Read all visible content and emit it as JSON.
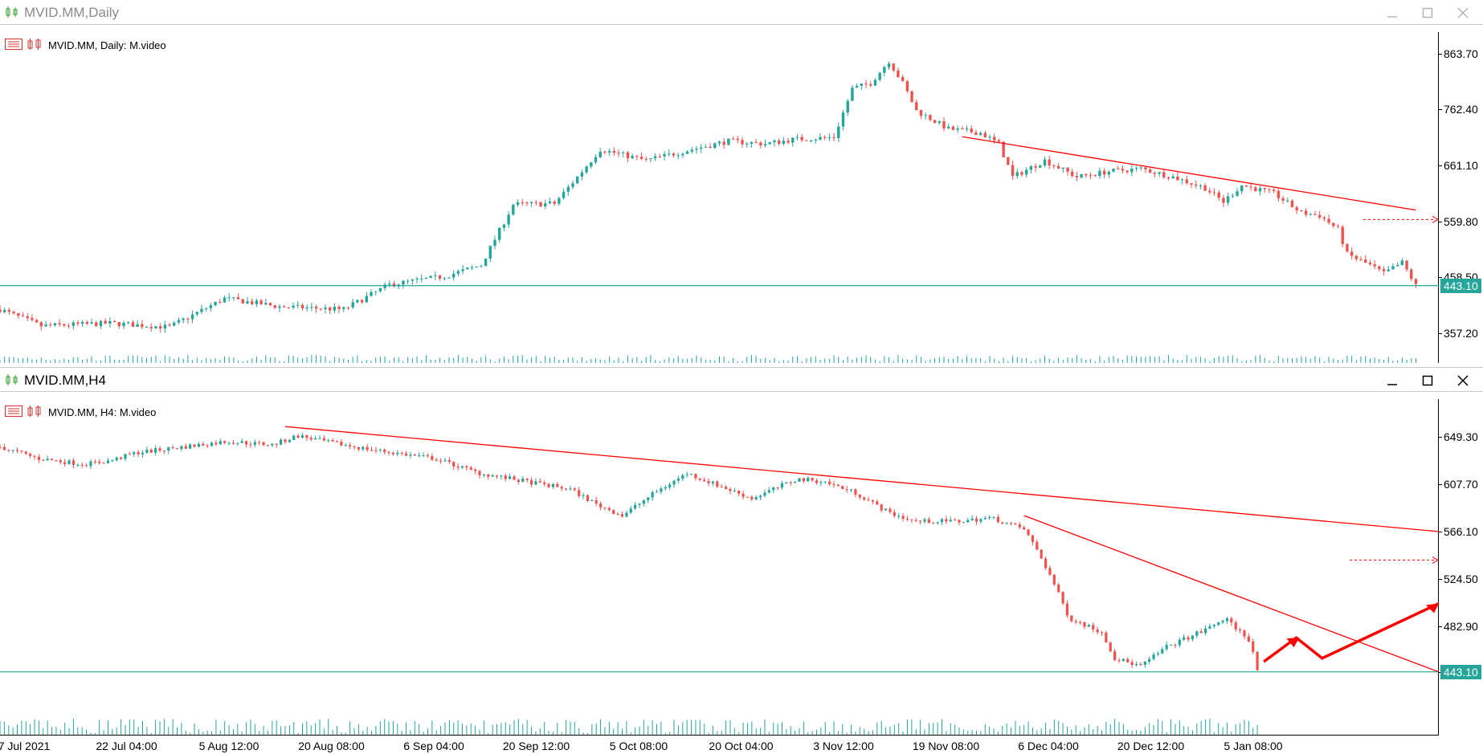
{
  "window_top": {
    "title": "MVID.MM,Daily",
    "legend": "MVID.MM, Daily:  M.video"
  },
  "window_bottom": {
    "title": "MVID.MM,H4",
    "legend": "MVID.MM, H4:  M.video"
  },
  "colors": {
    "up": "#26a69a",
    "down": "#ef5350",
    "trend": "#ff0000",
    "level": "#26a69a"
  },
  "chart_data": [
    {
      "type": "candlestick",
      "symbol": "MVID.MM",
      "timeframe": "Daily",
      "yticks": [
        "863.70",
        "762.40",
        "661.10",
        "559.80",
        "458.50",
        "357.20"
      ],
      "current_price": "443.10",
      "close_path": [
        [
          "2021-04-01",
          400
        ],
        [
          "2021-04-10",
          370
        ],
        [
          "2021-04-25",
          375
        ],
        [
          "2021-05-08",
          368
        ],
        [
          "2021-05-20",
          420
        ],
        [
          "2021-06-01",
          405
        ],
        [
          "2021-06-15",
          400
        ],
        [
          "2021-06-25",
          445
        ],
        [
          "2021-07-07",
          460
        ],
        [
          "2021-07-15",
          480
        ],
        [
          "2021-07-22",
          590
        ],
        [
          "2021-07-31",
          592
        ],
        [
          "2021-08-05",
          640
        ],
        [
          "2021-08-10",
          690
        ],
        [
          "2021-08-20",
          670
        ],
        [
          "2021-08-30",
          690
        ],
        [
          "2021-09-07",
          705
        ],
        [
          "2021-09-15",
          700
        ],
        [
          "2021-09-21",
          708
        ],
        [
          "2021-09-30",
          712
        ],
        [
          "2021-10-04",
          800
        ],
        [
          "2021-10-08",
          810
        ],
        [
          "2021-10-12",
          850
        ],
        [
          "2021-10-15",
          810
        ],
        [
          "2021-10-18",
          760
        ],
        [
          "2021-10-25",
          727
        ],
        [
          "2021-11-01",
          720
        ],
        [
          "2021-11-05",
          700
        ],
        [
          "2021-11-08",
          640
        ],
        [
          "2021-11-15",
          670
        ],
        [
          "2021-11-22",
          640
        ],
        [
          "2021-11-29",
          650
        ],
        [
          "2021-12-06",
          655
        ],
        [
          "2021-12-13",
          640
        ],
        [
          "2021-12-20",
          620
        ],
        [
          "2021-12-24",
          595
        ],
        [
          "2021-12-28",
          625
        ],
        [
          "2022-01-04",
          610
        ],
        [
          "2022-01-10",
          575
        ],
        [
          "2022-01-14",
          570
        ],
        [
          "2022-01-18",
          545
        ],
        [
          "2022-01-20",
          500
        ],
        [
          "2022-01-25",
          480
        ],
        [
          "2022-01-28",
          465
        ],
        [
          "2022-02-01",
          485
        ],
        [
          "2022-02-04",
          443
        ]
      ],
      "trendlines": [
        {
          "from": [
            "2021-10-28",
            713
          ],
          "to": [
            "2022-02-04",
            580
          ]
        }
      ],
      "level": 443.1
    },
    {
      "type": "candlestick",
      "symbol": "MVID.MM",
      "timeframe": "H4",
      "yticks": [
        "649.30",
        "607.70",
        "566.10",
        "524.50",
        "482.90",
        "443.10"
      ],
      "xticks": [
        "7 Jul 2021",
        "22 Jul 04:00",
        "5 Aug 12:00",
        "20 Aug 08:00",
        "6 Sep 04:00",
        "20 Sep 12:00",
        "5 Oct 08:00",
        "20 Oct 04:00",
        "3 Nov 12:00",
        "19 Nov 08:00",
        "6 Dec 04:00",
        "20 Dec 12:00",
        "5 Jan 08:00"
      ],
      "current_price": "443.10",
      "close_path": [
        [
          "2021-07-01",
          640
        ],
        [
          "2021-07-07",
          630
        ],
        [
          "2021-07-14",
          625
        ],
        [
          "2021-07-18",
          628
        ],
        [
          "2021-07-22",
          635
        ],
        [
          "2021-07-29",
          640
        ],
        [
          "2021-08-05",
          645
        ],
        [
          "2021-08-12",
          642
        ],
        [
          "2021-08-16",
          650
        ],
        [
          "2021-08-20",
          645
        ],
        [
          "2021-08-27",
          638
        ],
        [
          "2021-09-06",
          630
        ],
        [
          "2021-09-13",
          617
        ],
        [
          "2021-09-20",
          610
        ],
        [
          "2021-09-27",
          603
        ],
        [
          "2021-10-01",
          590
        ],
        [
          "2021-10-05",
          580
        ],
        [
          "2021-10-10",
          600
        ],
        [
          "2021-10-15",
          617
        ],
        [
          "2021-10-20",
          606
        ],
        [
          "2021-10-25",
          595
        ],
        [
          "2021-11-01",
          612
        ],
        [
          "2021-11-05",
          610
        ],
        [
          "2021-11-10",
          600
        ],
        [
          "2021-11-15",
          583
        ],
        [
          "2021-11-19",
          575
        ],
        [
          "2021-11-26",
          575
        ],
        [
          "2021-12-01",
          578
        ],
        [
          "2021-12-06",
          568
        ],
        [
          "2021-12-08",
          550
        ],
        [
          "2021-12-10",
          528
        ],
        [
          "2021-12-13",
          490
        ],
        [
          "2021-12-18",
          478
        ],
        [
          "2021-12-20",
          455
        ],
        [
          "2021-12-24",
          448
        ],
        [
          "2021-12-28",
          465
        ],
        [
          "2022-01-03",
          480
        ],
        [
          "2022-01-06",
          490
        ],
        [
          "2022-01-10",
          470
        ],
        [
          "2022-01-11",
          443
        ]
      ],
      "trendlines": [
        {
          "from": [
            "2021-08-14",
            658
          ],
          "to": [
            "2022-02-08",
            566
          ]
        },
        {
          "from": [
            "2021-12-06",
            580
          ],
          "to": [
            "2022-02-08",
            443
          ]
        }
      ],
      "forecast_arrow": [
        [
          "2022-01-12",
          452
        ],
        [
          "2022-01-17",
          473
        ],
        [
          "2022-01-21",
          455
        ],
        [
          "2022-02-08",
          503
        ]
      ],
      "level": 443.1
    }
  ]
}
